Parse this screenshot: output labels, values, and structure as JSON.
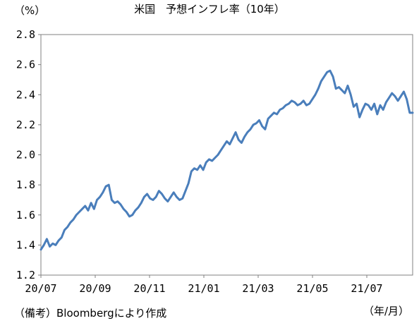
{
  "chart_data": {
    "type": "line",
    "title": "米国　予想インフレ率（10年）",
    "ylabel": "（%）",
    "xlabel": "（年/月）",
    "note": "（備考）Bloombergにより作成",
    "ylim": [
      1.2,
      2.8
    ],
    "yticks": [
      "1.2",
      "1.4",
      "1.6",
      "1.8",
      "2.0",
      "2.2",
      "2.4",
      "2.6",
      "2.8"
    ],
    "xticks": [
      "20/07",
      "20/09",
      "20/11",
      "21/01",
      "21/03",
      "21/05",
      "21/07"
    ],
    "grid": false,
    "color": "#4a7ebb",
    "series": [
      {
        "values": [
          1.37,
          1.4,
          1.44,
          1.39,
          1.41,
          1.4,
          1.43,
          1.45,
          1.5,
          1.52,
          1.55,
          1.57,
          1.6,
          1.62,
          1.64,
          1.66,
          1.63,
          1.68,
          1.64,
          1.7,
          1.72,
          1.75,
          1.79,
          1.8,
          1.7,
          1.68,
          1.69,
          1.67,
          1.64,
          1.62,
          1.59,
          1.6,
          1.63,
          1.65,
          1.68,
          1.72,
          1.74,
          1.71,
          1.7,
          1.72,
          1.76,
          1.74,
          1.71,
          1.69,
          1.72,
          1.75,
          1.72,
          1.7,
          1.71,
          1.76,
          1.81,
          1.89,
          1.91,
          1.9,
          1.93,
          1.9,
          1.95,
          1.97,
          1.96,
          1.98,
          2.0,
          2.03,
          2.06,
          2.09,
          2.07,
          2.11,
          2.15,
          2.1,
          2.08,
          2.12,
          2.15,
          2.17,
          2.2,
          2.21,
          2.23,
          2.19,
          2.17,
          2.24,
          2.26,
          2.28,
          2.27,
          2.3,
          2.31,
          2.33,
          2.34,
          2.36,
          2.35,
          2.33,
          2.34,
          2.36,
          2.33,
          2.34,
          2.37,
          2.4,
          2.44,
          2.49,
          2.52,
          2.55,
          2.56,
          2.52,
          2.44,
          2.45,
          2.43,
          2.41,
          2.46,
          2.4,
          2.32,
          2.34,
          2.25,
          2.3,
          2.34,
          2.33,
          2.3,
          2.34,
          2.27,
          2.33,
          2.3,
          2.35,
          2.38,
          2.41,
          2.39,
          2.36,
          2.39,
          2.42,
          2.37,
          2.28,
          2.28
        ]
      }
    ]
  }
}
